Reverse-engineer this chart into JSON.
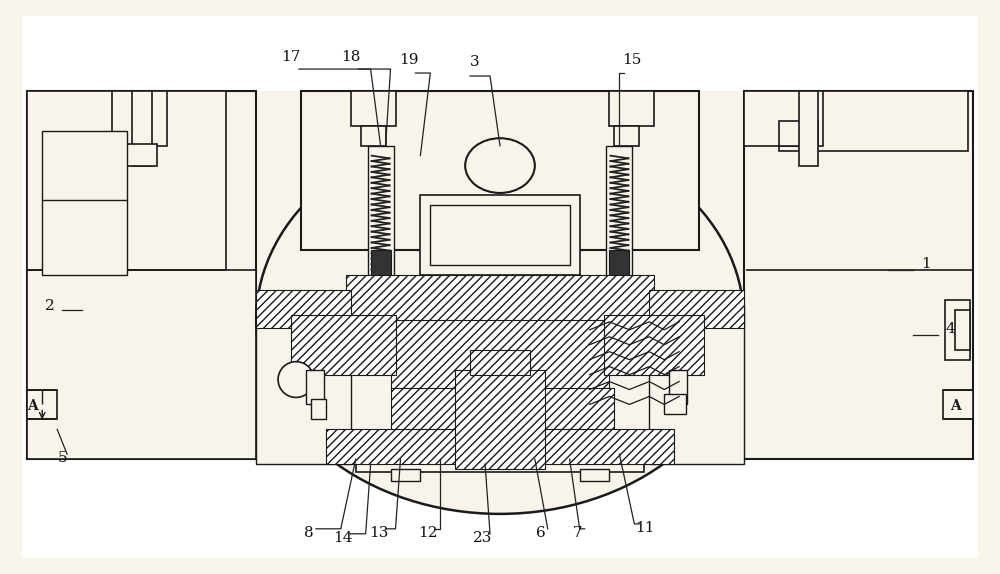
{
  "bg": "#f8f4ec",
  "lc": "#1a1a1a",
  "fc_light": "#f8f4ec",
  "fc_white": "#ffffff",
  "fc_dark": "#2a2a2a",
  "figsize": [
    10.0,
    5.74
  ],
  "dpi": 100
}
